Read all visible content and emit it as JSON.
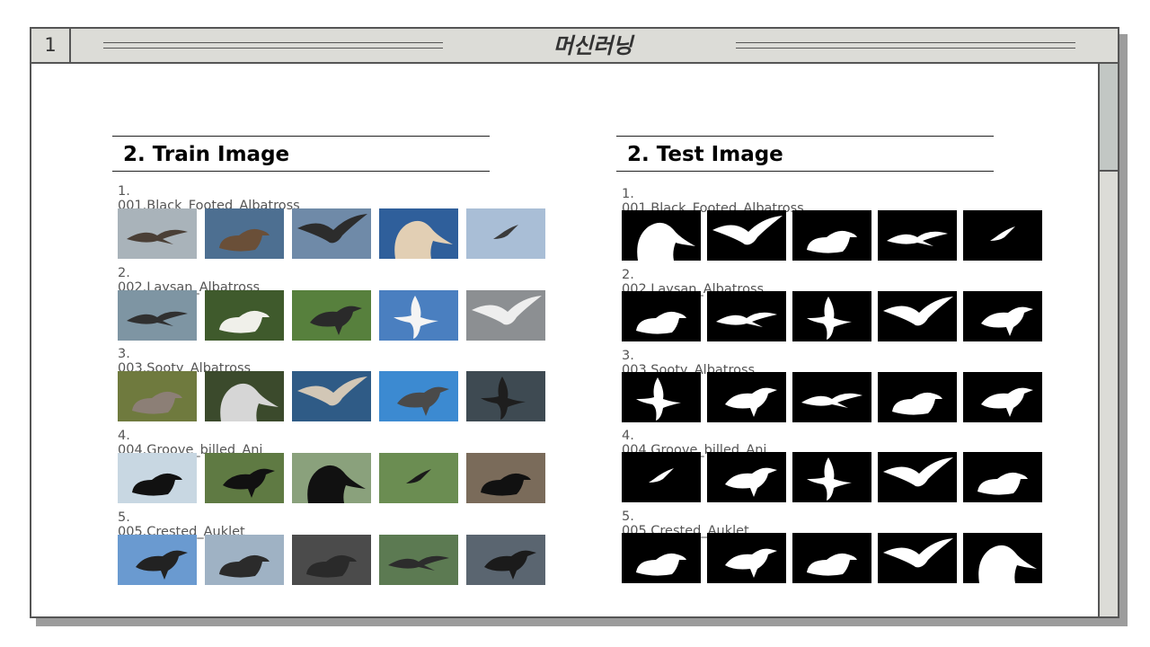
{
  "header": {
    "page_number": "1",
    "title": "머신러닝"
  },
  "train": {
    "heading": "2. Train Image",
    "categories": [
      {
        "label": "1. 001.Black_Footed_Albatross",
        "thumbs": [
          {
            "bg": "#a9b3ba",
            "bird": "#4a3f36",
            "shape": "fly"
          },
          {
            "bg": "#4d6f91",
            "bird": "#6a4f38",
            "shape": "sit"
          },
          {
            "bg": "#6f8aa8",
            "bird": "#2c2c2c",
            "shape": "wing"
          },
          {
            "bg": "#2f5f9b",
            "bird": "#e2cfb4",
            "shape": "head"
          },
          {
            "bg": "#a9bed6",
            "bird": "#3a3a3a",
            "shape": "far"
          }
        ]
      },
      {
        "label": "2. 002.Laysan_Albatross",
        "thumbs": [
          {
            "bg": "#7e95a3",
            "bird": "#303030",
            "shape": "fly"
          },
          {
            "bg": "#3f5a2c",
            "bird": "#f0f0ea",
            "shape": "sit"
          },
          {
            "bg": "#57803d",
            "bird": "#2a2a2a",
            "shape": "stand"
          },
          {
            "bg": "#4a7fc0",
            "bird": "#f4f4f4",
            "shape": "vert"
          },
          {
            "bg": "#8c8f92",
            "bird": "#eeeeee",
            "shape": "wing"
          }
        ]
      },
      {
        "label": "3. 003.Sooty_Albatross",
        "thumbs": [
          {
            "bg": "#6f7a3e",
            "bird": "#8c7f76",
            "shape": "sit"
          },
          {
            "bg": "#3b4a2c",
            "bird": "#d6d6d6",
            "shape": "head"
          },
          {
            "bg": "#2f5b86",
            "bird": "#d2c7b6",
            "shape": "wing"
          },
          {
            "bg": "#3c8ad1",
            "bird": "#4a4a4a",
            "shape": "stand"
          },
          {
            "bg": "#3e4a52",
            "bird": "#1e1e1e",
            "shape": "vert"
          }
        ]
      },
      {
        "label": "4. 004.Groove_billed_Ani",
        "thumbs": [
          {
            "bg": "#c8d7e2",
            "bird": "#111111",
            "shape": "sit"
          },
          {
            "bg": "#5f7a43",
            "bird": "#111111",
            "shape": "stand"
          },
          {
            "bg": "#8aa17c",
            "bird": "#111111",
            "shape": "head"
          },
          {
            "bg": "#6b8d52",
            "bird": "#1a1a1a",
            "shape": "far"
          },
          {
            "bg": "#7a6b5a",
            "bird": "#111111",
            "shape": "sit"
          }
        ]
      },
      {
        "label": "5. 005.Crested_Auklet",
        "thumbs": [
          {
            "bg": "#6a9ad0",
            "bird": "#222222",
            "shape": "stand"
          },
          {
            "bg": "#9fb2c4",
            "bird": "#2b2b2b",
            "shape": "sit"
          },
          {
            "bg": "#4b4b4b",
            "bird": "#2a2a2a",
            "shape": "sit"
          },
          {
            "bg": "#5c7a52",
            "bird": "#2c2c2c",
            "shape": "fly"
          },
          {
            "bg": "#5a6570",
            "bird": "#1b1b1b",
            "shape": "stand"
          }
        ]
      }
    ]
  },
  "test": {
    "heading": "2. Test Image",
    "categories": [
      {
        "label": "1. 001.Black_Footed_Albatross",
        "masks": [
          "head",
          "wing",
          "sit",
          "fly",
          "far"
        ]
      },
      {
        "label": "2. 002.Laysan_Albatross",
        "masks": [
          "sit",
          "fly",
          "vert",
          "wing",
          "stand"
        ]
      },
      {
        "label": "3. 003.Sooty_Albatross",
        "masks": [
          "vert",
          "stand",
          "fly",
          "sit",
          "stand"
        ]
      },
      {
        "label": "4. 004.Groove_billed_Ani",
        "masks": [
          "far",
          "stand",
          "vert",
          "wing",
          "sit"
        ]
      },
      {
        "label": "5. 005.Crested_Auklet",
        "masks": [
          "sit",
          "stand",
          "sit",
          "wing",
          "head"
        ]
      }
    ]
  },
  "colors": {
    "frame_bar": "#dcdcd7",
    "scroll_thumb": "#c2c7c4",
    "border": "#555555"
  }
}
